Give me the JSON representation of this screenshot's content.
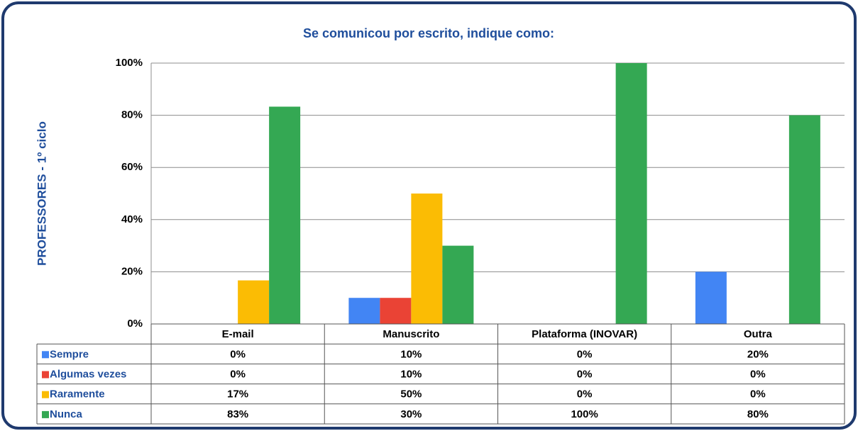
{
  "chart_data": {
    "type": "bar",
    "title": "Se comunicou por escrito, indique como:",
    "ylabel": "PROFESSORES - 1º ciclo",
    "categories": [
      "E-mail",
      "Manuscrito",
      "Plataforma (INOVAR)",
      "Outra"
    ],
    "series": [
      {
        "name": "Sempre",
        "color": "#4285f4",
        "values": [
          0,
          10,
          0,
          20
        ],
        "value_labels": [
          "0%",
          "10%",
          "0%",
          "20%"
        ]
      },
      {
        "name": "Algumas vezes",
        "color": "#ea4335",
        "values": [
          0,
          10,
          0,
          0
        ],
        "value_labels": [
          "0%",
          "10%",
          "0%",
          "0%"
        ]
      },
      {
        "name": "Raramente",
        "color": "#fbbc04",
        "values": [
          16.7,
          50,
          0,
          0
        ],
        "value_labels": [
          "17%",
          "50%",
          "0%",
          "0%"
        ]
      },
      {
        "name": "Nunca",
        "color": "#34a853",
        "values": [
          83.3,
          30,
          100,
          80
        ],
        "value_labels": [
          "83%",
          "30%",
          "100%",
          "80%"
        ]
      }
    ],
    "ylim": [
      0,
      100
    ],
    "yticks": [
      {
        "value": 0,
        "label": "0%"
      },
      {
        "value": 20,
        "label": "20%"
      },
      {
        "value": 40,
        "label": "40%"
      },
      {
        "value": 60,
        "label": "60%"
      },
      {
        "value": 80,
        "label": "80%"
      },
      {
        "value": 100,
        "label": "100%"
      }
    ],
    "grid": true
  }
}
